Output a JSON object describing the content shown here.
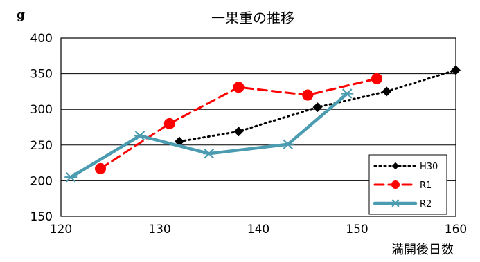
{
  "chart_data": {
    "type": "line",
    "title": "一果重の推移",
    "ylabel": "g",
    "xlabel": "満開後日数",
    "xlim": [
      120,
      160
    ],
    "ylim": [
      150,
      400
    ],
    "xticks": [
      "120",
      "130",
      "140",
      "150",
      "160"
    ],
    "yticks": [
      "150",
      "200",
      "250",
      "300",
      "350",
      "400"
    ],
    "grid": true,
    "legend_position": "bottom-right",
    "series": [
      {
        "name": "H30",
        "color": "#000000",
        "style": "dotted",
        "marker": "diamond",
        "x": [
          132,
          138,
          146,
          153,
          160
        ],
        "y": [
          255,
          269,
          303,
          325,
          355
        ]
      },
      {
        "name": "R1",
        "color": "#ff0000",
        "style": "dashed",
        "marker": "circle",
        "x": [
          124,
          131,
          138,
          145,
          152
        ],
        "y": [
          217,
          280,
          331,
          320,
          343
        ]
      },
      {
        "name": "R2",
        "color": "#4b9cb0",
        "style": "solid",
        "marker": "star",
        "x": [
          121,
          128,
          135,
          143,
          149
        ],
        "y": [
          205,
          263,
          238,
          251,
          322
        ]
      }
    ]
  }
}
